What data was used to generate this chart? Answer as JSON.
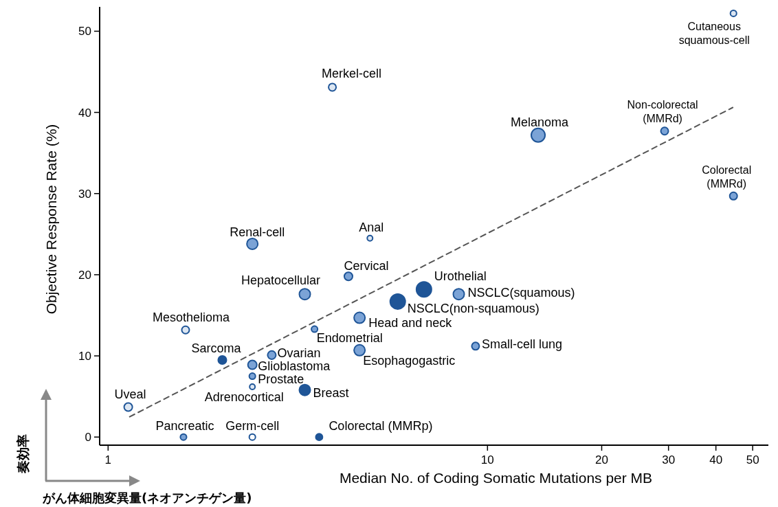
{
  "chart_data": {
    "type": "bubble",
    "xlabel": "Median No. of Coding Somatic Mutations per MB",
    "ylabel": "Objective Response Rate (%)",
    "log": "x",
    "xlim": [
      0.95,
      55
    ],
    "xticks": [
      1,
      10,
      20,
      30,
      40,
      50
    ],
    "ylim": [
      -1,
      53
    ],
    "yticks": [
      0,
      10,
      20,
      30,
      40,
      50
    ],
    "grid": false,
    "series": [
      {
        "x": [
          44.5,
          3.9,
          13.6,
          29.3,
          44.5,
          2.4,
          4.9,
          4.3,
          3.3,
          6.8,
          8.4,
          5.8,
          4.6,
          1.6,
          3.5,
          9.3,
          2.0,
          2.7,
          4.6,
          2.4,
          2.4,
          2.4,
          3.3,
          1.13,
          1.58,
          2.4,
          3.6
        ],
        "values": [
          52.2,
          43.1,
          37.2,
          37.7,
          29.7,
          23.8,
          24.5,
          19.8,
          17.6,
          18.2,
          17.6,
          16.7,
          14.7,
          13.2,
          13.3,
          11.2,
          9.5,
          10.1,
          10.7,
          8.9,
          7.5,
          6.2,
          5.8,
          3.7,
          0,
          0,
          0
        ],
        "sizes": [
          0.17,
          0.25,
          0.83,
          0.25,
          0.25,
          0.53,
          0.13,
          0.3,
          0.53,
          1,
          0.53,
          1,
          0.53,
          0.25,
          0.17,
          0.25,
          0.3,
          0.3,
          0.53,
          0.35,
          0.17,
          0.13,
          0.53,
          0.3,
          0.17,
          0.17,
          0.2
        ],
        "colors": [
          "#dce6f2",
          "#dce6f2",
          "#7ba3d6",
          "#7ba3d6",
          "#7ba3d6",
          "#7ba3d6",
          "#dce6f2",
          "#7ba3d6",
          "#7ba3d6",
          "#1f5597",
          "#7ba3d6",
          "#1f5597",
          "#7ba3d6",
          "#dce6f2",
          "#7ba3d6",
          "#7ba3d6",
          "#1f5597",
          "#7ba3d6",
          "#7ba3d6",
          "#7ba3d6",
          "#7ba3d6",
          "#dce6f2",
          "#1f5597",
          "#dce6f2",
          "#7ba3d6",
          "#ffffff",
          "#1f5597"
        ]
      },
      {
        "type": "line",
        "x": [
          1.14,
          44.3
        ],
        "values": [
          2.5,
          40.6
        ],
        "color": "#555555",
        "line_style": "dashed"
      }
    ],
    "annotations": [
      {
        "text": "Cutaneous\nsquamous-cell",
        "x": 44.5,
        "y": 52.2
      },
      {
        "text": "Merkel-cell",
        "x": 3.9,
        "y": 43.1
      },
      {
        "text": "Melanoma",
        "x": 13.6,
        "y": 37.2
      },
      {
        "text": "Non-colorectal\n(MMRd)",
        "x": 29.3,
        "y": 37.7
      },
      {
        "text": "Colorectal\n(MMRd)",
        "x": 44.5,
        "y": 29.7
      },
      {
        "text": "Renal-cell",
        "x": 2.4,
        "y": 23.8
      },
      {
        "text": "Anal",
        "x": 4.9,
        "y": 24.5
      },
      {
        "text": "Cervical",
        "x": 4.3,
        "y": 19.8
      },
      {
        "text": "Hepatocellular",
        "x": 3.3,
        "y": 17.6
      },
      {
        "text": "Urothelial",
        "x": 6.8,
        "y": 18.2
      },
      {
        "text": "NSCLC(squamous)",
        "x": 8.4,
        "y": 17.6
      },
      {
        "text": "NSCLC(non-squamous)",
        "x": 5.8,
        "y": 16.7
      },
      {
        "text": "Head and neck",
        "x": 4.6,
        "y": 14.7
      },
      {
        "text": "Mesothelioma",
        "x": 1.6,
        "y": 13.2
      },
      {
        "text": "Endometrial",
        "x": 3.5,
        "y": 13.3
      },
      {
        "text": "Small-cell lung",
        "x": 9.3,
        "y": 11.2
      },
      {
        "text": "Sarcoma",
        "x": 2.0,
        "y": 9.5
      },
      {
        "text": "Ovarian",
        "x": 2.7,
        "y": 10.1
      },
      {
        "text": "Esophagogastric",
        "x": 4.6,
        "y": 10.7
      },
      {
        "text": "Glioblastoma",
        "x": 2.4,
        "y": 8.9
      },
      {
        "text": "Prostate",
        "x": 2.4,
        "y": 7.5
      },
      {
        "text": "Adrenocortical",
        "x": 2.4,
        "y": 6.2
      },
      {
        "text": "Breast",
        "x": 3.3,
        "y": 5.8
      },
      {
        "text": "Uveal",
        "x": 1.13,
        "y": 3.7
      },
      {
        "text": "Pancreatic",
        "x": 1.58,
        "y": 0
      },
      {
        "text": "Germ-cell",
        "x": 2.4,
        "y": 0
      },
      {
        "text": "Colorectal (MMRp)",
        "x": 3.6,
        "y": 0
      },
      "奏効率",
      "がん体細胞変異量(ネオアンチゲン量)"
    ]
  }
}
